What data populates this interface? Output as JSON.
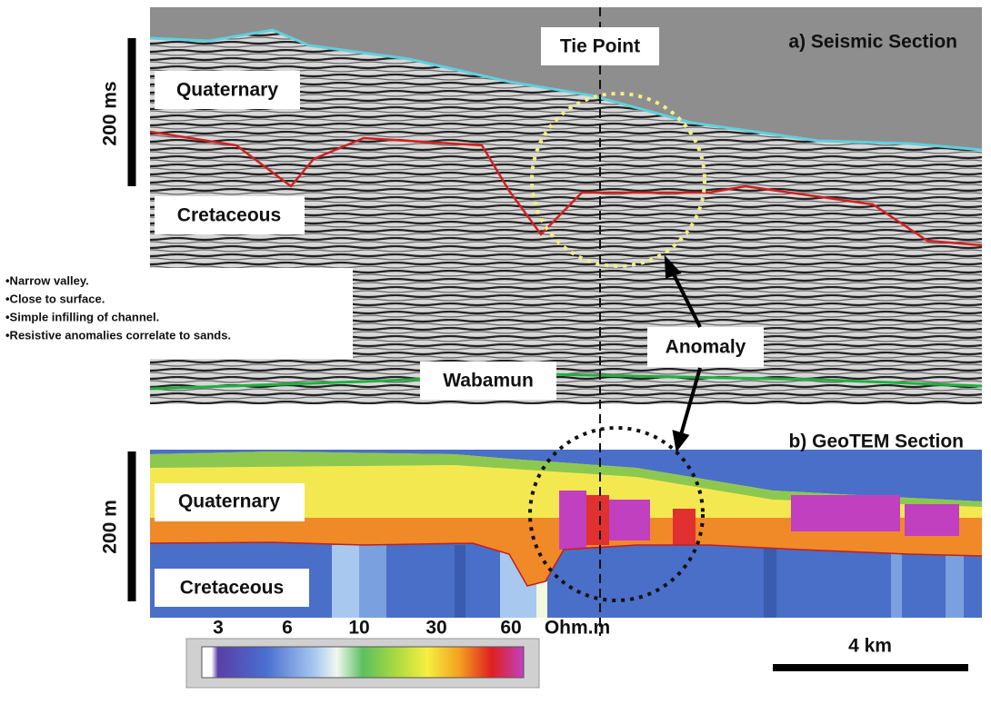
{
  "seismic_section": {
    "title": "a) Seismic Section",
    "tie_point": "Tie Point",
    "labels": [
      "Quaternary",
      "Cretaceous",
      "Wabamun"
    ],
    "anomaly": "Anomaly"
  },
  "notes": [
    "•Narrow valley.",
    "•Close to surface.",
    "•Simple infilling  of channel.",
    "•Resistive anomalies correlate to sands."
  ],
  "geotem_section": {
    "title": "b) GeoTEM Section",
    "labels": [
      "Quaternary",
      "Cretaceous"
    ]
  },
  "scale_bars": {
    "seismic": "200 ms",
    "geotem": "200 m",
    "distance": "4 km"
  },
  "colorbar": {
    "ticks": [
      3,
      6,
      10,
      30,
      60
    ],
    "unit": "Ohm.m"
  }
}
